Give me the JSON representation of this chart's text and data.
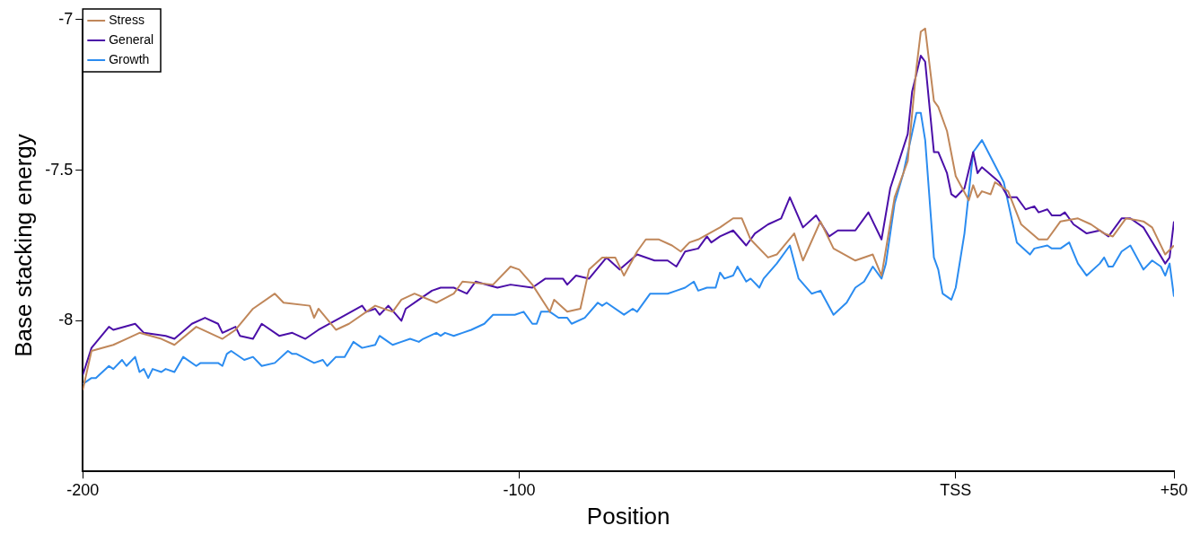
{
  "chart_data": {
    "type": "line",
    "xlabel": "Position",
    "ylabel": "Base stacking energy",
    "xlim": [
      -200,
      50
    ],
    "xticks": [
      -200,
      -100,
      {
        "value": 0,
        "label": "TSS"
      },
      {
        "value": 50,
        "label": "+50"
      }
    ],
    "ylim": [
      -8.5,
      -7
    ],
    "yticks": [
      -8,
      -7.5,
      -7
    ],
    "grid": false,
    "legend": "top left",
    "marker": "none",
    "line_style": "solid",
    "series": [
      {
        "name": "Stress",
        "color": "#c0875a",
        "x": [
          -200,
          -198,
          -193,
          -190,
          -187,
          -182,
          -179,
          -174,
          -168,
          -165,
          -161,
          -156,
          -154,
          -148,
          -147,
          -146,
          -142,
          -139,
          -133,
          -129,
          -127,
          -124,
          -119,
          -115,
          -113,
          -106,
          -102,
          -100,
          -97,
          -93,
          -92,
          -89,
          -86,
          -84,
          -81,
          -78,
          -76,
          -73,
          -71,
          -68,
          -65,
          -63,
          -61,
          -59,
          -54,
          -51,
          -49,
          -47,
          -43,
          -41,
          -37,
          -35,
          -31,
          -28,
          -23,
          -19,
          -17,
          -14,
          -11,
          -9,
          -8,
          -7,
          -5,
          -4,
          -2,
          0,
          3,
          4,
          5,
          6,
          8,
          9,
          12,
          15,
          19,
          21,
          24,
          28,
          31,
          34,
          36,
          39,
          43,
          45,
          48,
          50
        ],
        "values": [
          -8.23,
          -8.1,
          -8.08,
          -8.06,
          -8.04,
          -8.06,
          -8.08,
          -8.02,
          -8.06,
          -8.03,
          -7.96,
          -7.91,
          -7.94,
          -7.95,
          -7.99,
          -7.96,
          -8.03,
          -8.01,
          -7.95,
          -7.97,
          -7.93,
          -7.91,
          -7.94,
          -7.91,
          -7.87,
          -7.88,
          -7.82,
          -7.83,
          -7.88,
          -7.97,
          -7.93,
          -7.97,
          -7.96,
          -7.83,
          -7.79,
          -7.79,
          -7.85,
          -7.77,
          -7.73,
          -7.73,
          -7.75,
          -7.77,
          -7.74,
          -7.73,
          -7.69,
          -7.66,
          -7.66,
          -7.73,
          -7.79,
          -7.78,
          -7.71,
          -7.8,
          -7.67,
          -7.76,
          -7.8,
          -7.78,
          -7.85,
          -7.59,
          -7.47,
          -7.16,
          -7.04,
          -7.03,
          -7.27,
          -7.29,
          -7.37,
          -7.52,
          -7.6,
          -7.55,
          -7.59,
          -7.57,
          -7.58,
          -7.54,
          -7.57,
          -7.68,
          -7.73,
          -7.73,
          -7.67,
          -7.66,
          -7.68,
          -7.71,
          -7.72,
          -7.66,
          -7.67,
          -7.69,
          -7.78,
          -7.75
        ]
      },
      {
        "name": "General",
        "color": "#4b0fa8",
        "x": [
          -200,
          -198,
          -194,
          -193,
          -188,
          -186,
          -181,
          -179,
          -175,
          -172,
          -169,
          -168,
          -165,
          -164,
          -161,
          -159,
          -155,
          -152,
          -149,
          -146,
          -141,
          -136,
          -135,
          -133,
          -132,
          -130,
          -127,
          -126,
          -123,
          -120,
          -118,
          -116,
          -115,
          -112,
          -110,
          -105,
          -102,
          -97,
          -94,
          -90,
          -89,
          -87,
          -84,
          -80,
          -77,
          -73,
          -69,
          -66,
          -64,
          -62,
          -59,
          -57,
          -56,
          -54,
          -51,
          -48,
          -46,
          -43,
          -40,
          -38,
          -35,
          -32,
          -29,
          -27,
          -23,
          -20,
          -17,
          -15,
          -11,
          -10,
          -8,
          -7,
          -5,
          -4,
          -2,
          -1,
          0,
          2,
          4,
          5,
          6,
          10,
          12,
          14,
          16,
          18,
          19,
          21,
          22,
          24,
          25,
          27,
          30,
          33,
          35,
          38,
          40,
          43,
          48,
          49,
          50
        ],
        "values": [
          -8.18,
          -8.09,
          -8.02,
          -8.03,
          -8.01,
          -8.04,
          -8.05,
          -8.06,
          -8.01,
          -7.99,
          -8.01,
          -8.04,
          -8.02,
          -8.05,
          -8.06,
          -8.01,
          -8.05,
          -8.04,
          -8.06,
          -8.03,
          -7.99,
          -7.95,
          -7.97,
          -7.96,
          -7.98,
          -7.95,
          -8,
          -7.96,
          -7.93,
          -7.9,
          -7.89,
          -7.89,
          -7.89,
          -7.91,
          -7.87,
          -7.89,
          -7.88,
          -7.89,
          -7.86,
          -7.86,
          -7.88,
          -7.85,
          -7.86,
          -7.79,
          -7.83,
          -7.78,
          -7.8,
          -7.8,
          -7.82,
          -7.77,
          -7.76,
          -7.72,
          -7.74,
          -7.72,
          -7.7,
          -7.75,
          -7.71,
          -7.68,
          -7.66,
          -7.59,
          -7.69,
          -7.65,
          -7.72,
          -7.7,
          -7.7,
          -7.64,
          -7.73,
          -7.56,
          -7.38,
          -7.24,
          -7.12,
          -7.14,
          -7.44,
          -7.44,
          -7.51,
          -7.58,
          -7.59,
          -7.56,
          -7.44,
          -7.51,
          -7.49,
          -7.54,
          -7.59,
          -7.59,
          -7.63,
          -7.62,
          -7.64,
          -7.63,
          -7.65,
          -7.65,
          -7.64,
          -7.68,
          -7.71,
          -7.7,
          -7.72,
          -7.66,
          -7.66,
          -7.69,
          -7.81,
          -7.79,
          -7.67
        ]
      },
      {
        "name": "Growth",
        "color": "#2b8cf0",
        "x": [
          -200,
          -198,
          -197,
          -194,
          -193,
          -191,
          -190,
          -188,
          -187,
          -186,
          -185,
          -184,
          -182,
          -181,
          -179,
          -177,
          -174,
          -173,
          -169,
          -168,
          -167,
          -166,
          -163,
          -161,
          -159,
          -156,
          -153,
          -152,
          -151,
          -147,
          -145,
          -144,
          -142,
          -140,
          -138,
          -136,
          -133,
          -132,
          -130,
          -129,
          -127,
          -125,
          -123,
          -122,
          -119,
          -118,
          -117,
          -115,
          -113,
          -111,
          -108,
          -106,
          -104,
          -101,
          -99,
          -97,
          -96,
          -95,
          -93,
          -91,
          -89,
          -88,
          -85,
          -82,
          -81,
          -80,
          -76,
          -74,
          -73,
          -70,
          -68,
          -66,
          -64,
          -62,
          -60,
          -59,
          -57,
          -55,
          -54,
          -53,
          -51,
          -50,
          -48,
          -47,
          -45,
          -44,
          -41,
          -38,
          -36,
          -33,
          -31,
          -28,
          -25,
          -23,
          -21,
          -19,
          -17,
          -16,
          -14,
          -12,
          -9,
          -8,
          -7,
          -5,
          -4,
          -3,
          -1,
          0,
          2,
          4,
          6,
          11,
          14,
          17,
          18,
          21,
          22,
          24,
          26,
          28,
          30,
          33,
          34,
          35,
          36,
          38,
          40,
          43,
          45,
          47,
          48,
          49,
          50
        ],
        "values": [
          -8.21,
          -8.19,
          -8.19,
          -8.15,
          -8.16,
          -8.13,
          -8.15,
          -8.12,
          -8.17,
          -8.16,
          -8.19,
          -8.16,
          -8.17,
          -8.16,
          -8.17,
          -8.12,
          -8.15,
          -8.14,
          -8.14,
          -8.15,
          -8.11,
          -8.1,
          -8.13,
          -8.12,
          -8.15,
          -8.14,
          -8.1,
          -8.11,
          -8.11,
          -8.14,
          -8.13,
          -8.15,
          -8.12,
          -8.12,
          -8.07,
          -8.09,
          -8.08,
          -8.05,
          -8.07,
          -8.08,
          -8.07,
          -8.06,
          -8.07,
          -8.06,
          -8.04,
          -8.05,
          -8.04,
          -8.05,
          -8.04,
          -8.03,
          -8.01,
          -7.98,
          -7.98,
          -7.98,
          -7.97,
          -8.01,
          -8.01,
          -7.97,
          -7.97,
          -7.99,
          -7.99,
          -8.01,
          -7.99,
          -7.94,
          -7.95,
          -7.94,
          -7.98,
          -7.96,
          -7.97,
          -7.91,
          -7.91,
          -7.91,
          -7.9,
          -7.89,
          -7.87,
          -7.9,
          -7.89,
          -7.89,
          -7.84,
          -7.86,
          -7.85,
          -7.82,
          -7.87,
          -7.86,
          -7.89,
          -7.86,
          -7.81,
          -7.75,
          -7.86,
          -7.91,
          -7.9,
          -7.98,
          -7.94,
          -7.89,
          -7.87,
          -7.82,
          -7.86,
          -7.81,
          -7.61,
          -7.51,
          -7.31,
          -7.31,
          -7.4,
          -7.79,
          -7.83,
          -7.91,
          -7.93,
          -7.89,
          -7.71,
          -7.44,
          -7.4,
          -7.54,
          -7.74,
          -7.78,
          -7.76,
          -7.75,
          -7.76,
          -7.76,
          -7.74,
          -7.81,
          -7.85,
          -7.81,
          -7.79,
          -7.82,
          -7.82,
          -7.77,
          -7.75,
          -7.83,
          -7.8,
          -7.82,
          -7.85,
          -7.81,
          -7.92
        ]
      }
    ]
  }
}
